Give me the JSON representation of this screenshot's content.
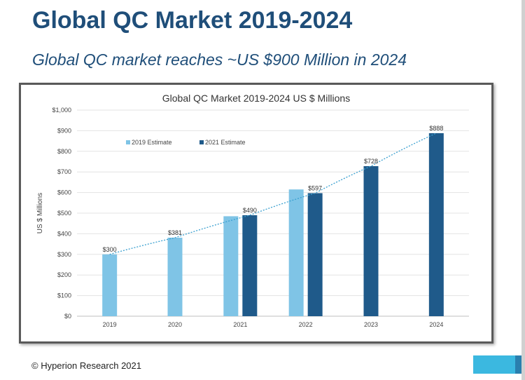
{
  "slide": {
    "title": "Global QC Market 2019-2024",
    "subtitle": "Global QC market reaches ~US $900 Million in 2024",
    "footer": "© Hyperion Research 2021"
  },
  "colors": {
    "title": "#1f4e79",
    "light_bar": "#7fc4e6",
    "dark_bar": "#1f5a8a",
    "trend": "#3aa0d0",
    "footer_accent": "#3bb8e0",
    "footer_accent_dark": "#2a7fae"
  },
  "chart_data": {
    "type": "bar",
    "title": "Global QC Market  2019-2024 US $ Millions",
    "xlabel": "",
    "ylabel": "US $ Millions",
    "ylim": [
      0,
      1000
    ],
    "yticks": [
      "$0",
      "$100",
      "$200",
      "$300",
      "$400",
      "$500",
      "$600",
      "$700",
      "$800",
      "$900",
      "$1,000"
    ],
    "ytick_values": [
      0,
      100,
      200,
      300,
      400,
      500,
      600,
      700,
      800,
      900,
      1000
    ],
    "categories": [
      "2019",
      "2020",
      "2021",
      "2022",
      "2023",
      "2024"
    ],
    "series": [
      {
        "name": "2019 Estimate",
        "values": [
          300,
          381,
          485,
          615,
          null,
          null
        ]
      },
      {
        "name": "2021 Estimate",
        "values": [
          null,
          null,
          490,
          597,
          728,
          888
        ]
      }
    ],
    "data_labels": [
      "$300",
      "$381",
      "$490",
      "$597",
      "$728",
      "$888"
    ],
    "trendline": {
      "type": "exponential",
      "style": "dotted"
    },
    "legend": "top-left",
    "grid": true
  }
}
